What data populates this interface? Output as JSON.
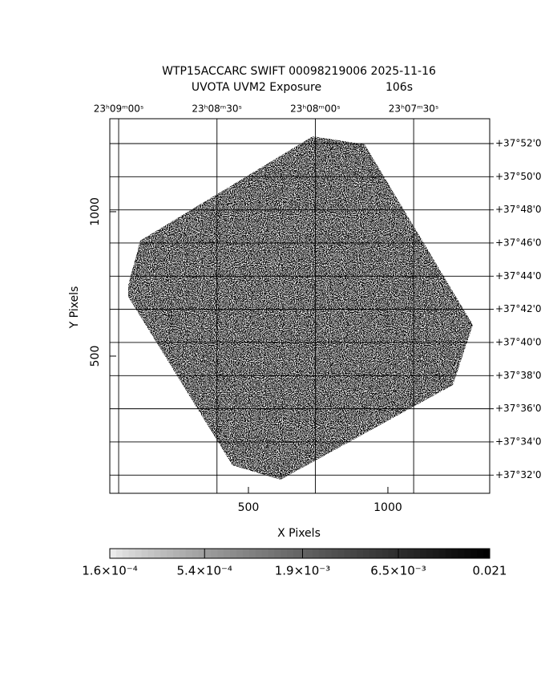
{
  "chart_data": {
    "type": "image",
    "title": "WTP15ACCARC SWIFT 00098219006 2025-11-16",
    "subtitle": "UVOTA UVM2 Exposure",
    "exposure": "106s",
    "xlabel": "X Pixels",
    "ylabel": "Y Pixels",
    "xlim": [
      3,
      1365
    ],
    "ylim": [
      25,
      1322
    ],
    "xticks": [
      500,
      1000
    ],
    "yticks": [
      500,
      1000
    ],
    "x2lim": [
      83342.7,
      83226.8
    ],
    "x2ticks": [
      {
        "value": 83340,
        "label": "23ʰ09ᵐ00ˢ"
      },
      {
        "value": 83310,
        "label": "23ʰ08ᵐ30ˢ"
      },
      {
        "value": 83280,
        "label": "23ʰ08ᵐ00ˢ"
      },
      {
        "value": 83250,
        "label": "23ʰ07ᵐ30ˢ"
      }
    ],
    "y2lim": [
      2250.9,
      2273.5
    ],
    "y2ticks": [
      {
        "value": 2272,
        "label": "+37°52'0"
      },
      {
        "value": 2270,
        "label": "+37°50'0"
      },
      {
        "value": 2268,
        "label": "+37°48'0"
      },
      {
        "value": 2266,
        "label": "+37°46'0"
      },
      {
        "value": 2264,
        "label": "+37°44'0"
      },
      {
        "value": 2262,
        "label": "+37°42'0"
      },
      {
        "value": 2260,
        "label": "+37°40'0"
      },
      {
        "value": 2258,
        "label": "+37°38'0"
      },
      {
        "value": 2256,
        "label": "+37°36'0"
      },
      {
        "value": 2254,
        "label": "+37°34'0"
      },
      {
        "value": 2252,
        "label": "+37°32'0"
      }
    ],
    "grid": true,
    "colorbar": {
      "scale": "log",
      "lim": [
        0.00016,
        0.021
      ],
      "ticks": [
        {
          "value": 0.00016,
          "label": "1.6×10⁻⁴"
        },
        {
          "value": 0.00054,
          "label": "5.4×10⁻⁴"
        },
        {
          "value": 0.0019,
          "label": "1.9×10⁻³"
        },
        {
          "value": 0.0065,
          "label": "6.5×10⁻³"
        },
        {
          "value": 0.021,
          "label": "0.021"
        }
      ]
    }
  }
}
